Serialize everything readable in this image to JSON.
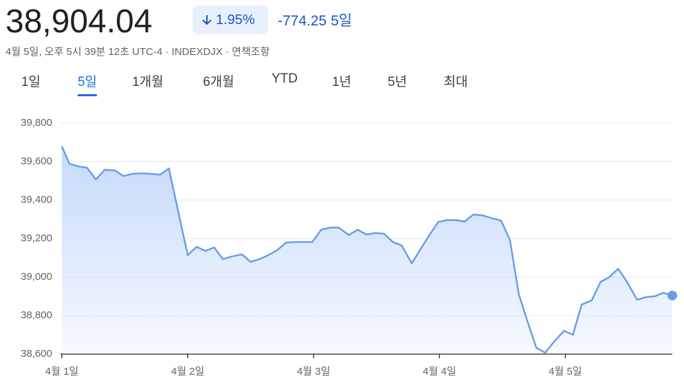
{
  "header": {
    "price": "38,904.04",
    "change_pct": "1.95%",
    "change": "-774.25",
    "period": "5일",
    "meta": "4월 5일, 오후 5시 39분 12초 UTC-4 · INDEXDJX · 면책조항"
  },
  "tabs": {
    "items": [
      "1일",
      "5일",
      "1개월",
      "6개월",
      "YTD",
      "1년",
      "5년",
      "최대"
    ],
    "active": 1
  },
  "chart_data": {
    "type": "line",
    "color": "#6a9de8",
    "grid": true,
    "x": [
      0,
      0.06,
      0.13,
      0.2,
      0.27,
      0.34,
      0.42,
      0.49,
      0.56,
      0.64,
      0.71,
      0.78,
      0.85,
      1.0,
      1.07,
      1.14,
      1.21,
      1.28,
      1.35,
      1.43,
      1.5,
      1.57,
      1.64,
      1.71,
      1.78,
      1.85,
      1.92,
      1.99,
      2.06,
      2.13,
      2.2,
      2.28,
      2.35,
      2.42,
      2.49,
      2.56,
      2.63,
      2.7,
      2.78,
      2.85,
      2.92,
      2.99,
      3.06,
      3.13,
      3.2,
      3.27,
      3.34,
      3.41,
      3.49,
      3.56,
      3.63,
      3.7,
      3.77,
      3.84,
      3.91,
      3.99,
      4.06,
      4.13,
      4.21,
      4.28,
      4.35,
      4.42,
      4.49,
      4.57,
      4.64,
      4.71,
      4.78,
      4.85
    ],
    "values": [
      39679,
      39589,
      39575,
      39568,
      39507,
      39557,
      39554,
      39525,
      39536,
      39539,
      39536,
      39532,
      39564,
      39114,
      39157,
      39136,
      39154,
      39093,
      39107,
      39118,
      39079,
      39093,
      39114,
      39139,
      39179,
      39182,
      39182,
      39182,
      39246,
      39257,
      39257,
      39218,
      39246,
      39221,
      39229,
      39225,
      39182,
      39164,
      39071,
      39146,
      39218,
      39286,
      39296,
      39296,
      39289,
      39325,
      39321,
      39307,
      39293,
      39193,
      38911,
      38768,
      38632,
      38607,
      38664,
      38721,
      38700,
      38857,
      38879,
      38975,
      39000,
      39043,
      38975,
      38882,
      38896,
      38900,
      38918,
      38904
    ],
    "xlim": [
      0,
      4.85
    ],
    "xticks": [
      {
        "value": 0,
        "label": "4월 1일"
      },
      {
        "value": 1,
        "label": "4월 2일"
      },
      {
        "value": 2,
        "label": "4월 3일"
      },
      {
        "value": 3,
        "label": "4월 4일"
      },
      {
        "value": 4,
        "label": "4월 5일"
      }
    ],
    "ylim": [
      38600,
      39800
    ],
    "yticks": [
      {
        "value": 38600,
        "label": "38,600"
      },
      {
        "value": 38800,
        "label": "38,800"
      },
      {
        "value": 39000,
        "label": "39,000"
      },
      {
        "value": 39200,
        "label": "39,200"
      },
      {
        "value": 39400,
        "label": "39,400"
      },
      {
        "value": 39600,
        "label": "39,600"
      },
      {
        "value": 39800,
        "label": "39,800"
      }
    ]
  }
}
